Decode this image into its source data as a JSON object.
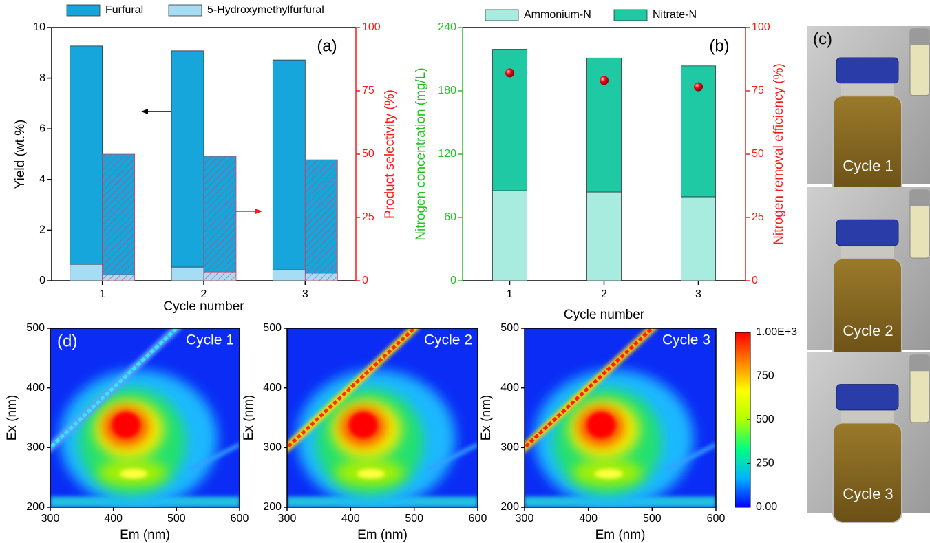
{
  "chart_data": [
    {
      "type": "bar",
      "label": "(a)",
      "xlabel": "Cycle number",
      "ylabel": "Yield (wt.%)",
      "y2label": "Product selectivity (%)",
      "categories": [
        "1",
        "2",
        "3"
      ],
      "ylim": [
        0,
        10
      ],
      "yticks": [
        0,
        2,
        4,
        6,
        8,
        10
      ],
      "y2lim": [
        0,
        100
      ],
      "y2ticks": [
        0,
        25,
        50,
        75,
        100
      ],
      "ycolor": "#000000",
      "y2color": "#ff1a1a",
      "series": [
        {
          "name": "5-Hydroxymethylfurfural",
          "color": "#a6dcf4",
          "values": [
            0.65,
            0.54,
            0.43
          ]
        },
        {
          "name": "Furfural",
          "color": "#16a6dc",
          "values": [
            8.62,
            8.54,
            8.29
          ]
        },
        {
          "axis": "y2",
          "color": "#a6dcf4",
          "hatch": "#d04060",
          "values": [
            2.4,
            3.5,
            3.0
          ]
        },
        {
          "axis": "y2",
          "color": "#16a6dc",
          "hatch": "#d04060",
          "values": [
            47.6,
            45.7,
            44.8
          ]
        }
      ]
    },
    {
      "type": "bar",
      "label": "(b)",
      "xlabel": "Cycle number",
      "ylabel": "Nitrogen concentration (mg/L)",
      "y2label": "Nitrogen removal efficiency (%)",
      "categories": [
        "1",
        "2",
        "3"
      ],
      "ylim": [
        0,
        240
      ],
      "yticks": [
        0,
        60,
        120,
        180,
        240
      ],
      "y2lim": [
        0,
        100
      ],
      "y2ticks": [
        0,
        25,
        50,
        75,
        100
      ],
      "ycolor": "#22c422",
      "y2color": "#ff1a1a",
      "series": [
        {
          "name": "Ammonium-N",
          "color": "#a8ece0",
          "values": [
            85.4,
            84.1,
            79.6
          ]
        },
        {
          "name": "Nitrate-N",
          "color": "#1ec9a4",
          "values": [
            134,
            127,
            124
          ]
        },
        {
          "axis": "y2",
          "type": "scatter",
          "color": "#e8141c",
          "values": [
            82.1,
            79.1,
            76.6
          ]
        }
      ]
    },
    {
      "type": "heatmap",
      "label": "(d)",
      "title": "Cycle 1",
      "xlabel": "Em (nm)",
      "ylabel": "Ex (nm)",
      "xlim": [
        300,
        600
      ],
      "xticks": [
        300,
        400,
        500,
        600
      ],
      "ylim": [
        200,
        500
      ],
      "yticks": [
        200,
        300,
        400,
        500
      ]
    },
    {
      "type": "heatmap",
      "title": "Cycle 2",
      "xlabel": "Em (nm)",
      "ylabel": "Ex (nm)",
      "xlim": [
        300,
        600
      ],
      "xticks": [
        300,
        400,
        500,
        600
      ],
      "ylim": [
        200,
        500
      ],
      "yticks": [
        200,
        300,
        400,
        500
      ]
    },
    {
      "type": "heatmap",
      "title": "Cycle 3",
      "xlabel": "Em (nm)",
      "ylabel": "Ex (nm)",
      "xlim": [
        300,
        600
      ],
      "xticks": [
        300,
        400,
        500,
        600
      ],
      "ylim": [
        200,
        500
      ],
      "yticks": [
        200,
        300,
        400,
        500
      ],
      "colorbar": {
        "colormap": [
          "#0000ff",
          "#00b4ff",
          "#00ff80",
          "#b0ff00",
          "#ffff00",
          "#ff8000",
          "#ff0000"
        ],
        "lim": [
          0,
          1000
        ],
        "ticks": [
          {
            "value": 0,
            "label": "0.00"
          },
          250,
          500,
          750,
          {
            "value": 1000,
            "label": "1.00E+3"
          }
        ]
      }
    }
  ],
  "photos": {
    "label": "(c)",
    "captions": [
      "Cycle 1",
      "Cycle 2",
      "Cycle 3"
    ]
  }
}
